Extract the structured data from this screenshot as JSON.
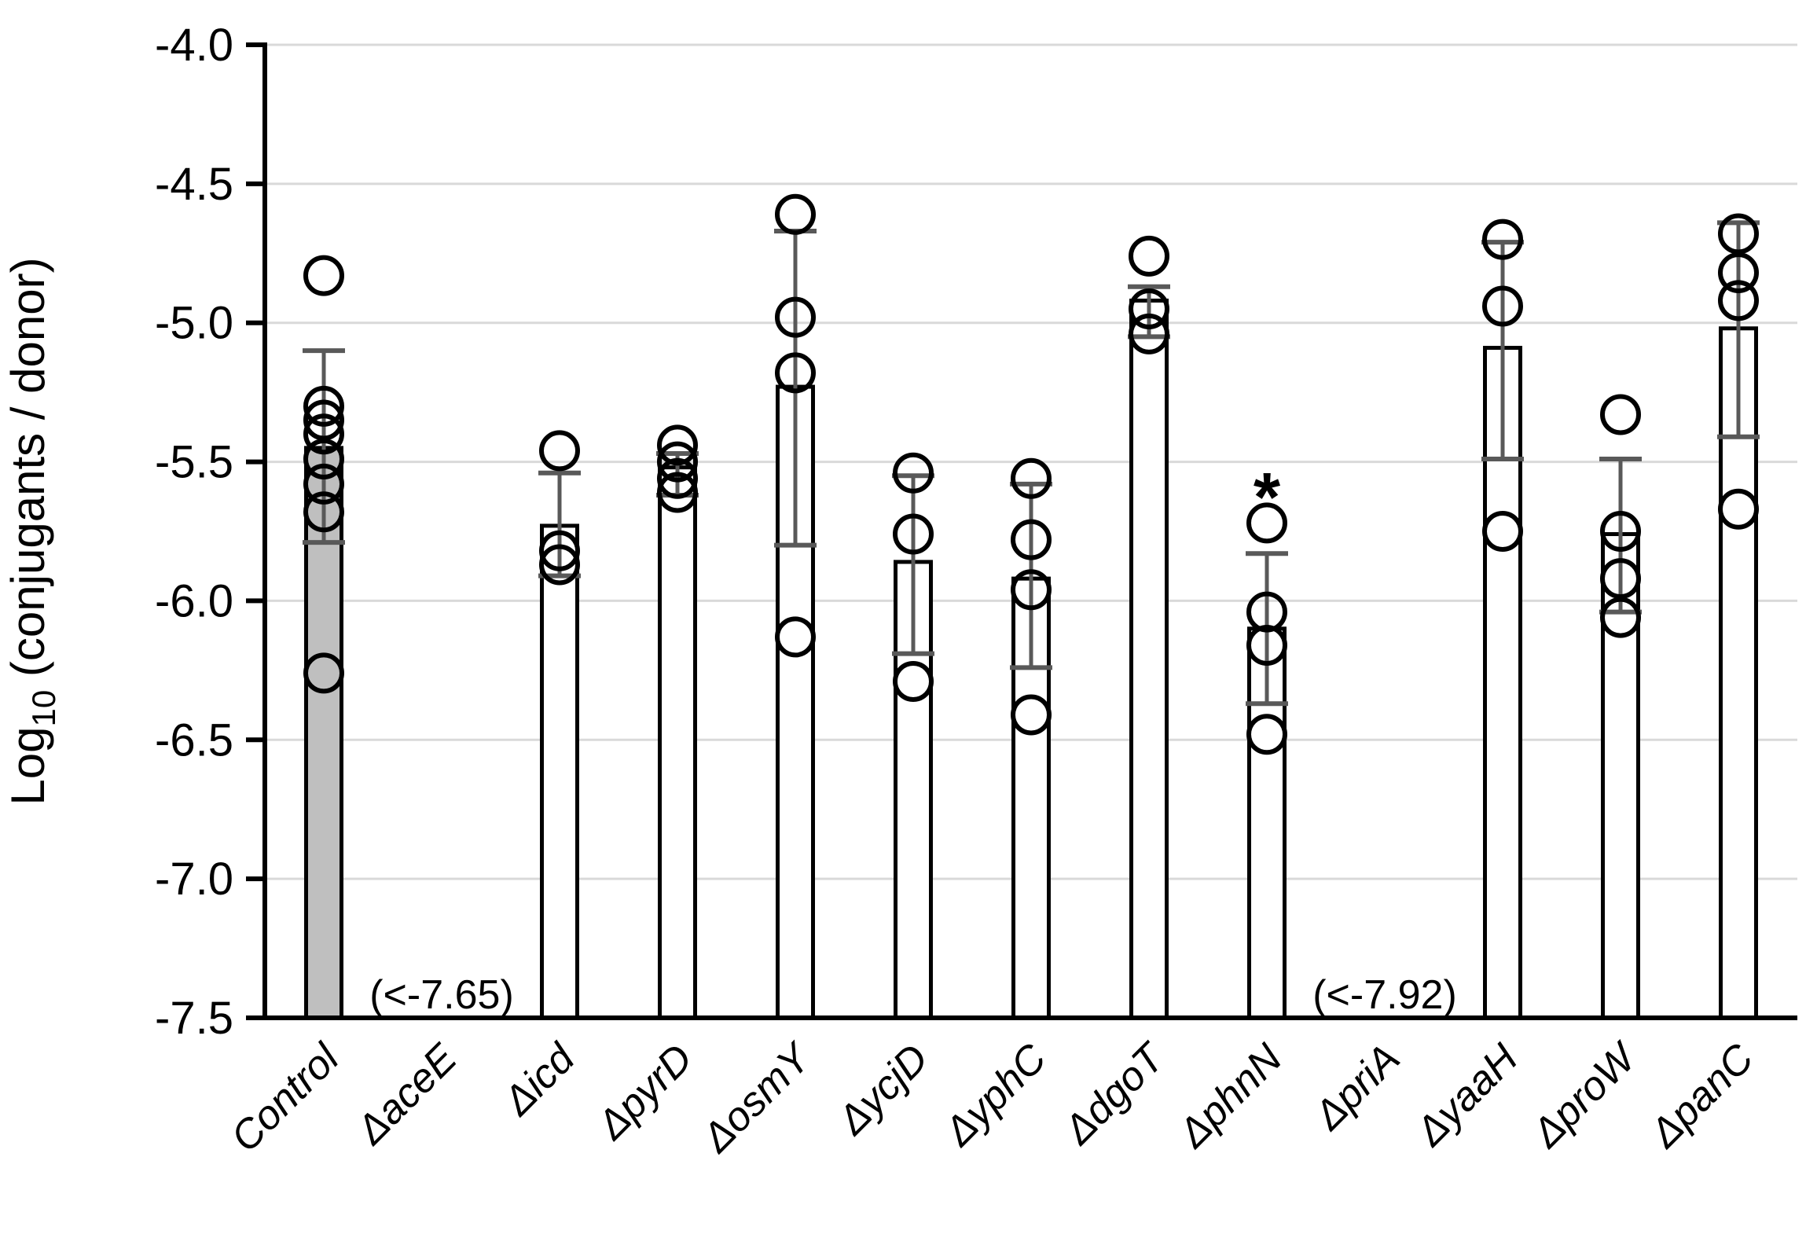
{
  "chart_data": {
    "type": "bar",
    "title": "",
    "ylabel_rich": {
      "prefix": "Log",
      "subscript": "10",
      "suffix": " (conjugants / donor)"
    },
    "xlabel": "",
    "ylim": [
      -7.5,
      -4.0
    ],
    "yticks": [
      -4.0,
      -4.5,
      -5.0,
      -5.5,
      -6.0,
      -6.5,
      -7.0,
      -7.5
    ],
    "grid": true,
    "legend": "none",
    "marker_style": "open-circle",
    "colors": {
      "bar_fill_default": "#ffffff",
      "bar_fill_control": "#bfbfbf",
      "bar_stroke": "#000000",
      "error_bar": "#595959",
      "gridline": "#d9d9d9",
      "axis": "#000000",
      "point_stroke": "#000000"
    },
    "categories": [
      "Control",
      "ΔaceE",
      "Δicd",
      "ΔpyrD",
      "ΔosmY",
      "ΔycjD",
      "ΔyphC",
      "ΔdgoT",
      "ΔphnN",
      "ΔpriA",
      "ΔyaaH",
      "ΔproW",
      "ΔpanC"
    ],
    "bars": [
      {
        "key": "control",
        "label": "Control",
        "mean": -5.45,
        "err_high": -5.1,
        "err_low": -5.79,
        "points": [
          -4.83,
          -5.3,
          -5.35,
          -5.4,
          -5.49,
          -5.58,
          -5.68,
          -6.26
        ],
        "fill": "#bfbfbf",
        "below_detection": null,
        "significance": null
      },
      {
        "key": "aceE",
        "label": "ΔaceE",
        "mean": null,
        "err_high": null,
        "err_low": null,
        "points": [],
        "fill": null,
        "below_detection": "(<-7.65)",
        "significance": null
      },
      {
        "key": "icd",
        "label": "Δicd",
        "mean": -5.73,
        "err_high": -5.54,
        "err_low": -5.91,
        "points": [
          -5.46,
          -5.82,
          -5.87
        ],
        "fill": "#ffffff",
        "below_detection": null,
        "significance": null
      },
      {
        "key": "pyrD",
        "label": "ΔpyrD",
        "mean": -5.52,
        "err_high": -5.47,
        "err_low": -5.62,
        "points": [
          -5.44,
          -5.5,
          -5.56,
          -5.61
        ],
        "fill": "#ffffff",
        "below_detection": null,
        "significance": null
      },
      {
        "key": "osmY",
        "label": "ΔosmY",
        "mean": -5.23,
        "err_high": -4.67,
        "err_low": -5.8,
        "points": [
          -4.61,
          -4.98,
          -5.18,
          -6.13
        ],
        "fill": "#ffffff",
        "below_detection": null,
        "significance": null
      },
      {
        "key": "ycjD",
        "label": "ΔycjD",
        "mean": -5.86,
        "err_high": -5.55,
        "err_low": -6.19,
        "points": [
          -5.54,
          -5.76,
          -6.29
        ],
        "fill": "#ffffff",
        "below_detection": null,
        "significance": null
      },
      {
        "key": "yphC",
        "label": "ΔyphC",
        "mean": -5.92,
        "err_high": -5.58,
        "err_low": -6.24,
        "points": [
          -5.56,
          -5.78,
          -5.96,
          -6.41
        ],
        "fill": "#ffffff",
        "below_detection": null,
        "significance": null
      },
      {
        "key": "dgoT",
        "label": "ΔdgoT",
        "mean": -4.92,
        "err_high": -4.87,
        "err_low": -5.05,
        "points": [
          -4.76,
          -4.95,
          -5.04
        ],
        "fill": "#ffffff",
        "below_detection": null,
        "significance": null
      },
      {
        "key": "phnN",
        "label": "ΔphnN",
        "mean": -6.1,
        "err_high": -5.83,
        "err_low": -6.37,
        "points": [
          -5.72,
          -6.04,
          -6.16,
          -6.48
        ],
        "fill": "#ffffff",
        "below_detection": null,
        "significance": "*"
      },
      {
        "key": "priA",
        "label": "ΔpriA",
        "mean": null,
        "err_high": null,
        "err_low": null,
        "points": [],
        "fill": null,
        "below_detection": "(<-7.92)",
        "significance": null
      },
      {
        "key": "yaaH",
        "label": "ΔyaaH",
        "mean": -5.09,
        "err_high": -4.71,
        "err_low": -5.49,
        "points": [
          -4.7,
          -4.94,
          -5.75
        ],
        "fill": "#ffffff",
        "below_detection": null,
        "significance": null
      },
      {
        "key": "proW",
        "label": "ΔproW",
        "mean": -5.76,
        "err_high": -5.49,
        "err_low": -6.04,
        "points": [
          -5.33,
          -5.75,
          -5.92,
          -6.06
        ],
        "fill": "#ffffff",
        "below_detection": null,
        "significance": null
      },
      {
        "key": "panC",
        "label": "ΔpanC",
        "mean": -5.02,
        "err_high": -4.64,
        "err_low": -5.41,
        "points": [
          -4.68,
          -4.82,
          -4.92,
          -5.67
        ],
        "fill": "#ffffff",
        "below_detection": null,
        "significance": null
      }
    ]
  }
}
